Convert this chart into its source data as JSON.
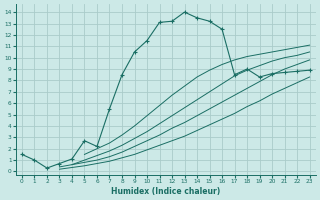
{
  "xlabel": "Humidex (Indice chaleur)",
  "bg_color": "#cce9e7",
  "grid_color": "#aaccca",
  "line_color": "#1a6e64",
  "xlim": [
    -0.5,
    23.5
  ],
  "ylim": [
    -0.3,
    14.7
  ],
  "xticks": [
    0,
    1,
    2,
    3,
    4,
    5,
    6,
    7,
    8,
    9,
    10,
    11,
    12,
    13,
    14,
    15,
    16,
    17,
    18,
    19,
    20,
    21,
    22,
    23
  ],
  "yticks": [
    0,
    1,
    2,
    3,
    4,
    5,
    6,
    7,
    8,
    9,
    10,
    11,
    12,
    13,
    14
  ],
  "main_x": [
    0,
    1,
    2,
    3,
    4,
    5,
    6,
    7,
    8,
    9,
    10,
    11,
    12,
    13,
    14,
    15,
    16,
    17,
    18,
    19,
    20,
    21,
    22,
    23
  ],
  "main_y": [
    1.5,
    1.0,
    0.3,
    0.7,
    1.1,
    2.7,
    2.2,
    5.5,
    8.5,
    10.5,
    11.5,
    13.1,
    13.2,
    14.0,
    13.5,
    13.2,
    12.5,
    8.5,
    9.0,
    8.3,
    8.6,
    8.7,
    8.8,
    8.9
  ],
  "fan_lines": [
    {
      "x": [
        3,
        5,
        6,
        7,
        8,
        9,
        10,
        11,
        12,
        13,
        14,
        15,
        16,
        17,
        18,
        19,
        20,
        21,
        22,
        23
      ],
      "y": [
        0.2,
        0.5,
        0.7,
        0.9,
        1.2,
        1.5,
        1.9,
        2.3,
        2.7,
        3.1,
        3.6,
        4.1,
        4.6,
        5.1,
        5.7,
        6.2,
        6.8,
        7.3,
        7.8,
        8.3
      ]
    },
    {
      "x": [
        3,
        5,
        6,
        7,
        8,
        9,
        10,
        11,
        12,
        13,
        14,
        15,
        16,
        17,
        18,
        19,
        20,
        21,
        22,
        23
      ],
      "y": [
        0.4,
        0.8,
        1.0,
        1.3,
        1.7,
        2.2,
        2.7,
        3.2,
        3.8,
        4.3,
        4.9,
        5.5,
        6.1,
        6.7,
        7.3,
        7.9,
        8.5,
        9.0,
        9.4,
        9.8
      ]
    },
    {
      "x": [
        4,
        5,
        6,
        7,
        8,
        9,
        10,
        11,
        12,
        13,
        14,
        15,
        16,
        17,
        18,
        19,
        20,
        21,
        22,
        23
      ],
      "y": [
        0.6,
        1.0,
        1.4,
        1.8,
        2.3,
        2.9,
        3.5,
        4.2,
        4.9,
        5.6,
        6.3,
        7.0,
        7.7,
        8.4,
        8.9,
        9.3,
        9.7,
        10.0,
        10.2,
        10.5
      ]
    },
    {
      "x": [
        5,
        6,
        7,
        8,
        9,
        10,
        11,
        12,
        13,
        14,
        15,
        16,
        17,
        18,
        19,
        20,
        21,
        22,
        23
      ],
      "y": [
        1.5,
        2.0,
        2.5,
        3.2,
        4.0,
        4.9,
        5.8,
        6.7,
        7.5,
        8.3,
        8.9,
        9.4,
        9.8,
        10.1,
        10.3,
        10.5,
        10.7,
        10.9,
        11.1
      ]
    }
  ]
}
